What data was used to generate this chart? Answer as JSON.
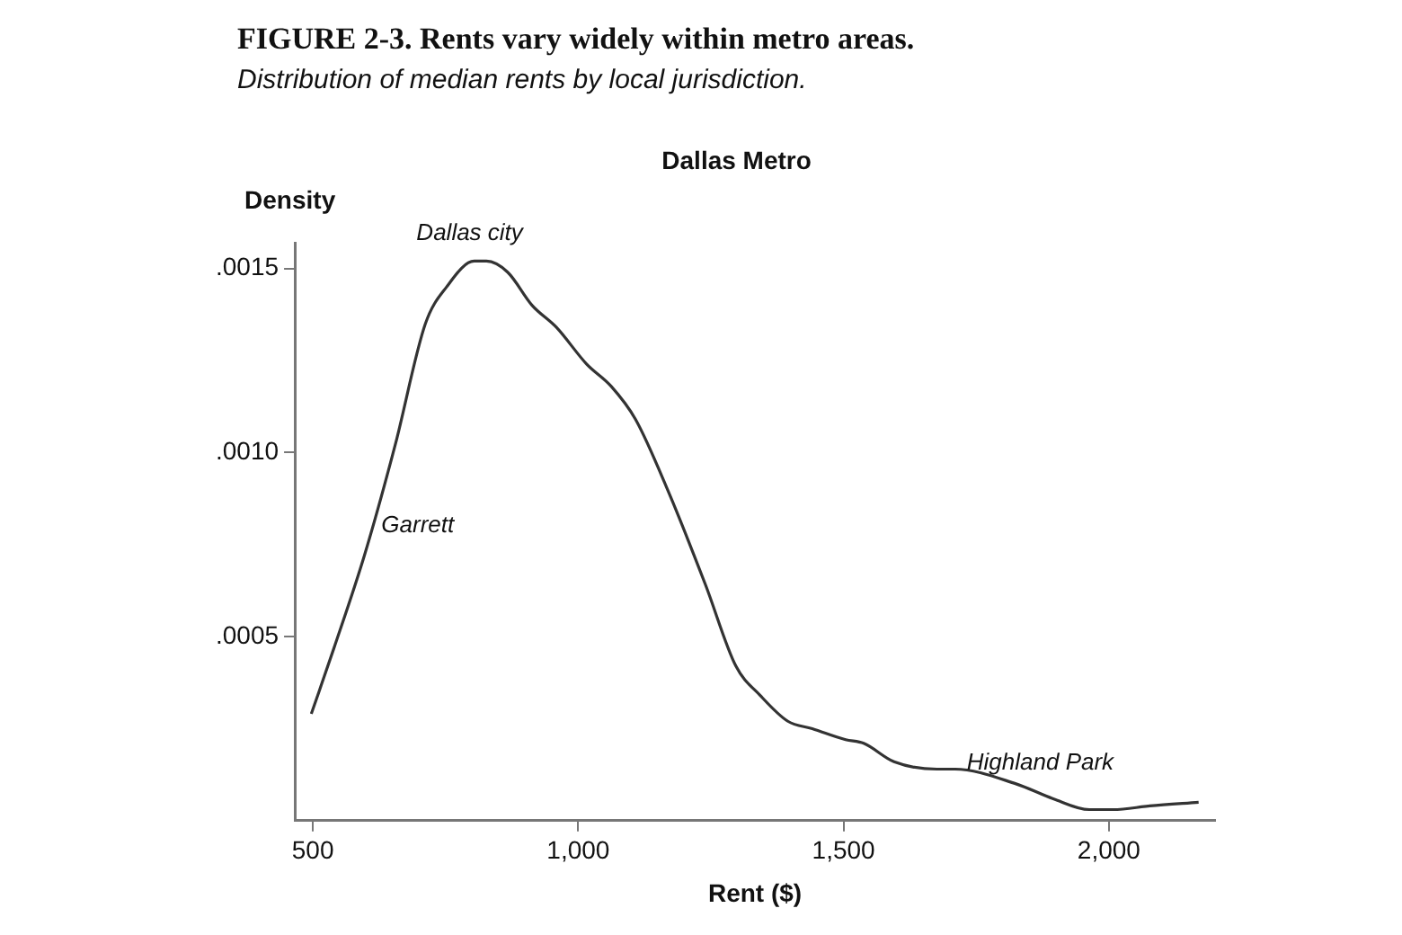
{
  "chart_data": {
    "type": "line",
    "title": "FIGURE 2-3. Rents vary widely within metro areas.",
    "subtitle": "Distribution of median rents by local jurisdiction.",
    "xlabel": "Rent ($)",
    "ylabel": "Density",
    "x": [
      497,
      540,
      597,
      655,
      712,
      752,
      804,
      827,
      867,
      913,
      959,
      1016,
      1062,
      1108,
      1171,
      1240,
      1297,
      1343,
      1395,
      1441,
      1504,
      1538,
      1595,
      1676,
      1710,
      1825,
      1894,
      1963,
      2008,
      2077,
      2169
    ],
    "series": [
      {
        "color": "#333333",
        "values": [
          0.00029,
          0.00047,
          0.00072,
          0.00102,
          0.00135,
          0.00145,
          0.00152,
          0.00152,
          0.00149,
          0.0014,
          0.00134,
          0.00124,
          0.00118,
          0.00109,
          0.00089,
          0.00064,
          0.00042,
          0.00034,
          0.00027,
          0.00025,
          0.00022,
          0.00021,
          0.00016,
          0.00014,
          0.00014,
          0.0001,
          6e-05,
          3e-05,
          3e-05,
          4e-05,
          5e-05
        ]
      }
    ],
    "annotations": [
      "Dallas Metro",
      "Dallas city",
      "Garrett",
      "Highland Park"
    ],
    "xlim": [
      466,
      2200
    ],
    "ylim": [
      0,
      0.00157
    ],
    "xticks": [
      500,
      {
        "value": 1000,
        "label": "1,000"
      },
      {
        "value": 1500,
        "label": "1,500"
      },
      {
        "value": 2000,
        "label": "2,000"
      }
    ],
    "yticks": [
      {
        "value": 0.0005,
        "label": ".0005"
      },
      {
        "value": 0.001,
        "label": ".0010"
      },
      {
        "value": 0.0015,
        "label": ".0015"
      }
    ],
    "grid": false,
    "legend": false,
    "marker": "none",
    "line_style": "solid"
  }
}
